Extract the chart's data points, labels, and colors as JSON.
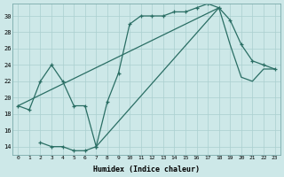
{
  "xlabel": "Humidex (Indice chaleur)",
  "bg_color": "#cde8e8",
  "grid_color": "#aacfcf",
  "line_color": "#2a6e64",
  "xlim": [
    -0.5,
    23.5
  ],
  "ylim": [
    13.0,
    31.5
  ],
  "xticks": [
    0,
    1,
    2,
    3,
    4,
    5,
    6,
    7,
    8,
    9,
    10,
    11,
    12,
    13,
    14,
    15,
    16,
    17,
    18,
    19,
    20,
    21,
    22,
    23
  ],
  "yticks": [
    14,
    16,
    18,
    20,
    22,
    24,
    26,
    28,
    30
  ],
  "line1_x": [
    0,
    1,
    2,
    3,
    4,
    5,
    6,
    7,
    8,
    9,
    10,
    11,
    12,
    13,
    14,
    15,
    16,
    17,
    18
  ],
  "line1_y": [
    19,
    18.5,
    22,
    24,
    22,
    19,
    19,
    14,
    19.5,
    23,
    29,
    30,
    30,
    30,
    30.5,
    30.5,
    31,
    31.5,
    31
  ],
  "line2_x": [
    2,
    3,
    4,
    5,
    6,
    7,
    18,
    19,
    20,
    21,
    22,
    23
  ],
  "line2_y": [
    14.5,
    14,
    14,
    13.5,
    13.5,
    14,
    31,
    29.5,
    26.5,
    24.5,
    24,
    23.5
  ],
  "line3_x": [
    0,
    18,
    19,
    20,
    21,
    22,
    23
  ],
  "line3_y": [
    19,
    31,
    26.5,
    22.5,
    22,
    23.5,
    23.5
  ]
}
